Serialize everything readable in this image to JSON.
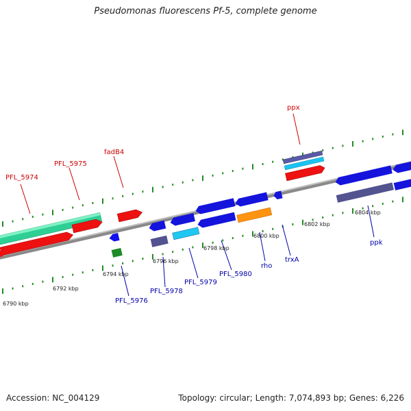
{
  "title": "Pseudomonas fluorescens Pf-5, complete genome",
  "accession_text": "Accession: NC_004129",
  "stats_text": "Topology: circular; Length: 7,074,893 bp; Genes: 6,226",
  "colors": {
    "forward_label": "#cc0000",
    "reverse_label": "#0000aa",
    "backbone": "#888888",
    "tick": "#228b22"
  },
  "ruler_labels": [
    "6790 kbp",
    "6792 kbp",
    "6794 kbp",
    "6796 kbp",
    "6798 kbp",
    "6800 kbp",
    "6802 kbp",
    "6804 kbp"
  ],
  "gene_labels_forward": [
    "PFL_5974",
    "PFL_5975",
    "fadB4",
    "ppx"
  ],
  "gene_labels_reverse": [
    "PFL_5976",
    "PFL_5978",
    "PFL_5979",
    "PFL_5980",
    "rho",
    "trxA",
    "ppk"
  ]
}
